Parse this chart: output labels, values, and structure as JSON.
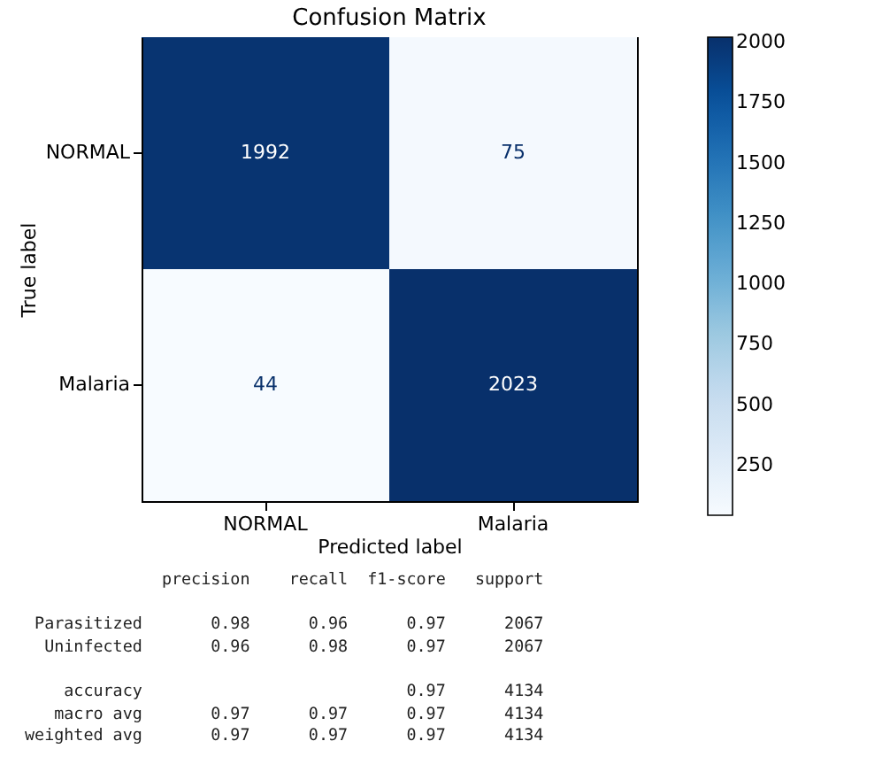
{
  "chart_data": {
    "type": "heatmap",
    "title": "Confusion Matrix",
    "xlabel": "Predicted label",
    "ylabel": "True label",
    "categories": [
      "NORMAL",
      "Malaria"
    ],
    "y_categories": [
      "NORMAL",
      "Malaria"
    ],
    "cells": [
      [
        1992,
        75
      ],
      [
        44,
        2023
      ]
    ],
    "data_labels": true,
    "clim": [
      44,
      2023
    ],
    "cticks": [
      250,
      500,
      750,
      1000,
      1250,
      1500,
      1750,
      2000
    ],
    "annotations": [
      "              precision    recall  f1-score   support",
      " Parasitized       0.98      0.96      0.97      2067",
      "  Uninfected       0.96      0.98      0.97      2067",
      "    accuracy                           0.97      4134",
      "   macro avg       0.97      0.97      0.97      4134",
      "weighted avg       0.97      0.97      0.97      4134"
    ]
  }
}
